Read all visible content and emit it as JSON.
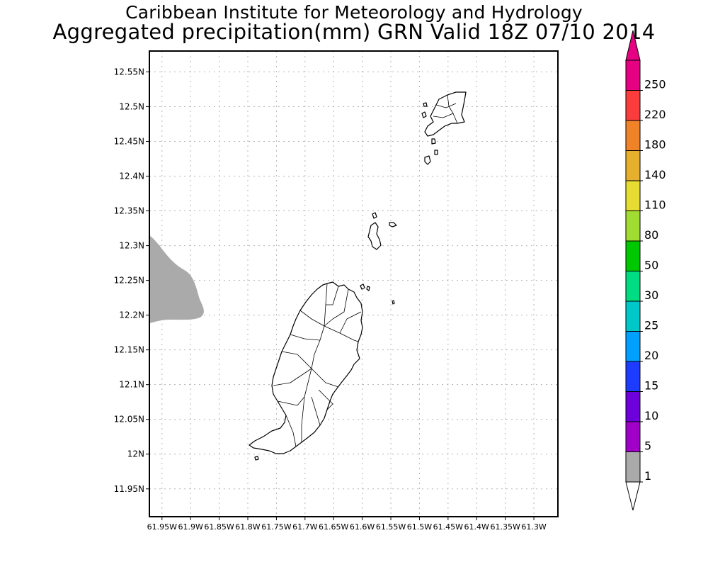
{
  "title": {
    "line1": "Caribbean Institute for Meteorology and Hydrology",
    "line2": "Aggregated precipitation(mm) GRN Valid 18Z 07/10 2014"
  },
  "map": {
    "lat_ticks": [
      "12.55N",
      "12.5N",
      "12.45N",
      "12.4N",
      "12.35N",
      "12.3N",
      "12.25N",
      "12.2N",
      "12.15N",
      "12.1N",
      "12.05N",
      "12N",
      "11.95N"
    ],
    "lon_ticks": [
      "61.95W",
      "61.9W",
      "61.85W",
      "61.8W",
      "61.75W",
      "61.7W",
      "61.65W",
      "61.6W",
      "61.55W",
      "61.5W",
      "61.45W",
      "61.4W",
      "61.35W",
      "61.3W"
    ],
    "lat_range": [
      11.91,
      12.58
    ],
    "lon_range": [
      -61.972,
      -61.258
    ],
    "precip_area_color": "#aaaaaa",
    "land_outline_color": "#000000"
  },
  "legend": {
    "labels": [
      "1",
      "5",
      "10",
      "15",
      "20",
      "25",
      "30",
      "50",
      "80",
      "110",
      "140",
      "180",
      "220",
      "250"
    ],
    "colors": [
      "#aaaaaa",
      "#a000c8",
      "#6e00dc",
      "#1e3cff",
      "#00a0ff",
      "#00c8c8",
      "#00dc82",
      "#00c800",
      "#a0dc32",
      "#e6dc32",
      "#e6af2d",
      "#f08228",
      "#fa3c3c",
      "#e60082"
    ],
    "under_color": "#ffffff",
    "over_color": "#e60082"
  }
}
